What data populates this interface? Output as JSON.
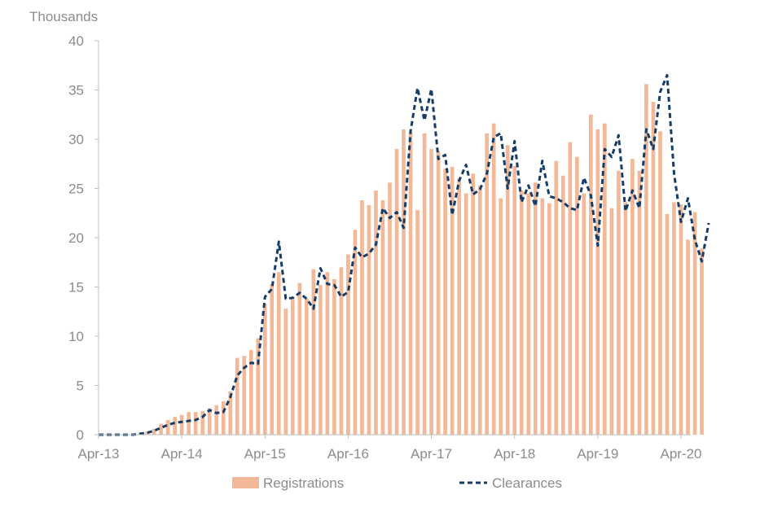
{
  "chart_data": {
    "type": "bar",
    "y_unit_label": "Thousands",
    "ylim": [
      0,
      40
    ],
    "y_ticks": [
      "0",
      "5",
      "10",
      "15",
      "20",
      "25",
      "30",
      "35",
      "40"
    ],
    "x_tick_labels": [
      "Apr-13",
      "Apr-14",
      "Apr-15",
      "Apr-16",
      "Apr-17",
      "Apr-18",
      "Apr-19",
      "Apr-20"
    ],
    "x_tick_month_index": [
      0,
      12,
      24,
      36,
      48,
      60,
      72,
      84
    ],
    "grid": false,
    "legend_position": "bottom",
    "months_first": "Apr-13",
    "series": [
      {
        "name": "Registrations",
        "type": "bar",
        "color": "#f2b897",
        "values": [
          0,
          0,
          0,
          0,
          0,
          0,
          0.1,
          0.3,
          0.6,
          1.1,
          1.5,
          1.8,
          2.0,
          2.3,
          2.3,
          2.4,
          2.7,
          3.0,
          3.4,
          4.4,
          7.8,
          8.0,
          8.6,
          9.8,
          13.3,
          15.3,
          16.5,
          12.8,
          14.0,
          15.4,
          13.8,
          16.8,
          15.2,
          16.5,
          15.8,
          17.0,
          18.3,
          20.8,
          23.8,
          23.3,
          24.8,
          23.8,
          25.6,
          29.0,
          31.0,
          30.7,
          22.8,
          30.6,
          29.0,
          28.8,
          27.0,
          27.2,
          26.0,
          24.5,
          26.5,
          25.3,
          30.6,
          31.6,
          24.0,
          29.4,
          27.3,
          24.8,
          24.5,
          25.6,
          24.0,
          23.5,
          27.8,
          26.3,
          29.7,
          28.2,
          24.5,
          32.5,
          31.0,
          31.6,
          23.0,
          26.8,
          23.6,
          28.0,
          26.8,
          35.6,
          33.8,
          30.8,
          22.4,
          23.6,
          23.4,
          19.8,
          22.6,
          18.9
        ]
      },
      {
        "name": "Clearances",
        "type": "line",
        "color": "#163d68",
        "dash": "dashed",
        "values": [
          0,
          0,
          0,
          0,
          0,
          0,
          0.1,
          0.2,
          0.4,
          0.7,
          1.0,
          1.2,
          1.3,
          1.4,
          1.5,
          1.8,
          2.5,
          2.2,
          2.3,
          3.8,
          6.0,
          6.8,
          7.3,
          7.2,
          14.0,
          14.8,
          19.6,
          13.8,
          13.9,
          14.4,
          13.8,
          12.8,
          16.9,
          15.3,
          15.2,
          14.0,
          14.5,
          19.0,
          18.0,
          18.4,
          19.3,
          23.0,
          22.0,
          22.6,
          21.0,
          30.8,
          35.2,
          31.9,
          35.1,
          28.0,
          28.4,
          22.3,
          25.8,
          27.4,
          24.4,
          24.9,
          26.5,
          30.2,
          30.6,
          25.0,
          29.8,
          23.6,
          25.3,
          23.2,
          27.8,
          24.2,
          24.0,
          23.6,
          23.0,
          22.8,
          26.1,
          24.3,
          19.2,
          29.0,
          28.2,
          30.4,
          22.7,
          24.8,
          23.0,
          31.0,
          29.0,
          34.8,
          36.5,
          26.5,
          21.6,
          24.0,
          19.8,
          17.6,
          21.5
        ]
      }
    ]
  }
}
